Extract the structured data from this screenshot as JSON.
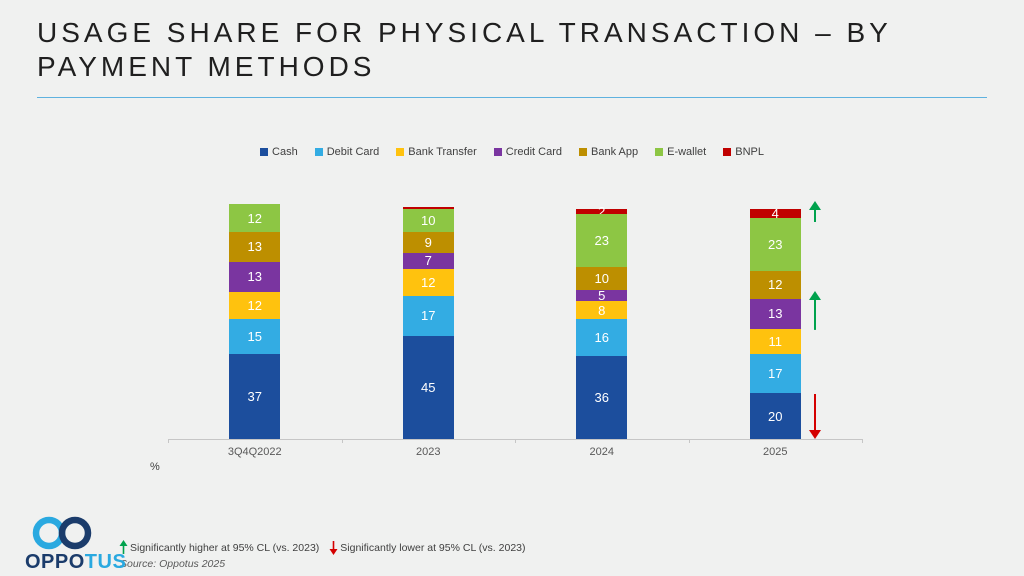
{
  "slide": {
    "title": "USAGE SHARE FOR PHYSICAL TRANSACTION – BY PAYMENT METHODS",
    "unit_label": "%",
    "source": "Source: Oppotus 2025",
    "footnotes": {
      "higher": "Significantly higher at 95% CL (vs. 2023)",
      "lower": "Significantly lower at 95% CL (vs. 2023)"
    },
    "logo": {
      "primary": "OPPO",
      "secondary": "TUS"
    }
  },
  "colors": {
    "background": "#f0f1f0",
    "divider_blue": "#5fb2df",
    "axis_gray": "#c6c6c6",
    "axis_label_gray": "#595959",
    "sig_green": "#00a24d",
    "sig_red": "#d40000",
    "logo_navy": "#1b3c6b",
    "logo_cyan": "#2aa9e0"
  },
  "chart_data": {
    "type": "bar",
    "stacked": true,
    "title": "Usage share for physical transaction by payment methods",
    "xlabel": "",
    "ylabel": "%",
    "grid": false,
    "legend_position": "top",
    "categories": [
      "3Q4Q2022",
      "2023",
      "2024",
      "2025"
    ],
    "series": [
      {
        "name": "Cash",
        "color": "#1c4e9d",
        "values": [
          37,
          45,
          36,
          20
        ]
      },
      {
        "name": "Debit Card",
        "color": "#33ace3",
        "values": [
          15,
          17,
          16,
          17
        ]
      },
      {
        "name": "Bank Transfer",
        "color": "#ffc20e",
        "values": [
          12,
          12,
          8,
          11
        ]
      },
      {
        "name": "Credit Card",
        "color": "#7a35a0",
        "values": [
          13,
          7,
          5,
          13
        ]
      },
      {
        "name": "Bank App",
        "color": "#bd8f00",
        "values": [
          13,
          9,
          10,
          12
        ]
      },
      {
        "name": "E-wallet",
        "color": "#8dc644",
        "values": [
          12,
          10,
          23,
          23
        ]
      },
      {
        "name": "BNPL",
        "color": "#c00000",
        "values": [
          0,
          1,
          2,
          4
        ]
      }
    ],
    "annotations": [
      {
        "category": "2025",
        "target": "BNPL",
        "direction": "up",
        "meaning": "significantly higher vs 2023"
      },
      {
        "category": "2025",
        "target": "Credit Card",
        "direction": "up",
        "meaning": "significantly higher vs 2023"
      },
      {
        "category": "2025",
        "target": "Cash",
        "direction": "down",
        "meaning": "significantly lower vs 2023"
      }
    ]
  }
}
